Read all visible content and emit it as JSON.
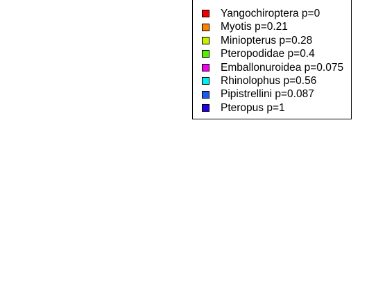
{
  "chart_data": {
    "type": "pie",
    "title": "",
    "legend_placement": "top-right",
    "legend": [
      {
        "label": "Yangochiroptera p=0",
        "color": "#EE0000"
      },
      {
        "label": "Myotis p=0.21",
        "color": "#FF7F00"
      },
      {
        "label": "Miniopterus p=0.28",
        "color": "#C8F000"
      },
      {
        "label": "Pteropodidae p=0.4",
        "color": "#55EE00"
      },
      {
        "label": "Emballonuroidea p=0.075",
        "color": "#EE00EE"
      },
      {
        "label": "Rhinolophus p=0.56",
        "color": "#00EEEE"
      },
      {
        "label": "Pipistrellini p=0.087",
        "color": "#1E5AEE"
      },
      {
        "label": "Pteropus p=1",
        "color": "#2200EE"
      }
    ]
  }
}
